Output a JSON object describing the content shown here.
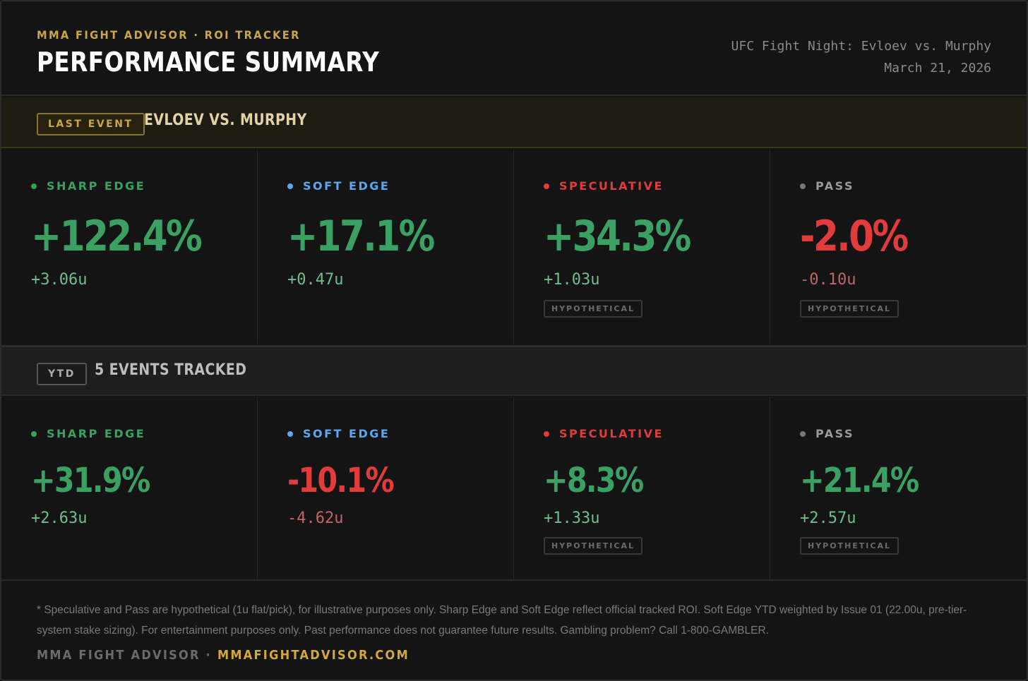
{
  "header": {
    "kicker": "MMA FIGHT ADVISOR · ROI TRACKER",
    "title": "PERFORMANCE SUMMARY",
    "event_name": "UFC Fight Night: Evloev vs. Murphy",
    "event_date": "March 21, 2026"
  },
  "last_event": {
    "tag": "LAST EVENT",
    "label": "EVLOEV VS. MURPHY",
    "cells": [
      {
        "name": "SHARP EDGE",
        "pct": "+122.4%",
        "units": "+3.06u",
        "badge": ""
      },
      {
        "name": "SOFT EDGE",
        "pct": "+17.1%",
        "units": "+0.47u",
        "badge": ""
      },
      {
        "name": "SPECULATIVE",
        "pct": "+34.3%",
        "units": "+1.03u",
        "badge": "HYPOTHETICAL"
      },
      {
        "name": "PASS",
        "pct": "-2.0%",
        "units": "-0.10u",
        "badge": "HYPOTHETICAL"
      }
    ]
  },
  "ytd": {
    "tag": "YTD",
    "label": "5 EVENTS TRACKED",
    "cells": [
      {
        "name": "SHARP EDGE",
        "pct": "+31.9%",
        "units": "+2.63u",
        "badge": ""
      },
      {
        "name": "SOFT EDGE",
        "pct": "-10.1%",
        "units": "-4.62u",
        "badge": ""
      },
      {
        "name": "SPECULATIVE",
        "pct": "+8.3%",
        "units": "+1.33u",
        "badge": "HYPOTHETICAL"
      },
      {
        "name": "PASS",
        "pct": "+21.4%",
        "units": "+2.57u",
        "badge": "HYPOTHETICAL"
      }
    ]
  },
  "colors": {
    "sharp": "#3aa163",
    "soft": "#5ea7ef",
    "speculative": "#e23b3b",
    "pass": "#777777",
    "positive": "#3aa163",
    "negative": "#e23b3b",
    "accent": "#c9a64a"
  },
  "footer": {
    "note": "* Speculative and Pass are hypothetical (1u flat/pick), for illustrative purposes only. Sharp Edge and Soft Edge reflect official tracked ROI. Soft Edge YTD weighted by Issue 01 (22.00u, pre-tier-system stake sizing). For entertainment purposes only. Past performance does not guarantee future results. Gambling problem? Call 1-800-GAMBLER.",
    "brand": "MMA FIGHT ADVISOR · ",
    "site": "MMAFIGHTADVISOR.COM"
  }
}
